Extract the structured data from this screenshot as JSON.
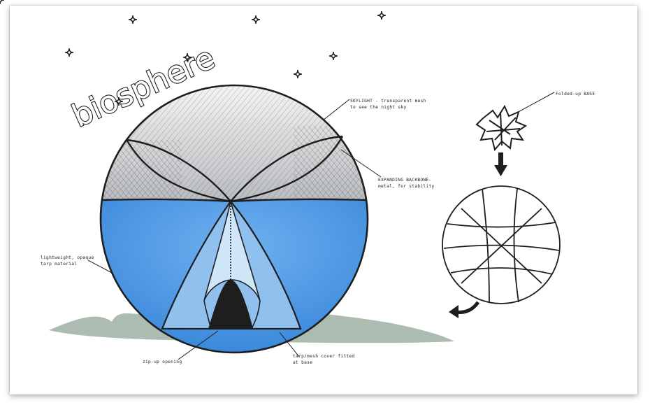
{
  "title": "biosphere",
  "labels": {
    "skylight": [
      "SKYLIGHT - transparent mesh",
      "to see the night sky"
    ],
    "backbone": [
      "EXPANDING BACKBONE-",
      "metal, for stability"
    ],
    "folded_base": [
      "Folded-up BASE"
    ],
    "tarp": [
      "lightweight, opaque",
      "tarp material"
    ],
    "zip": [
      "zip-up opening"
    ],
    "cover": [
      "tarp/mesh cover fitted",
      "at base"
    ]
  },
  "colors": {
    "tarp_blue": "#3d8fe0",
    "tarp_light": "#9cc8f2",
    "mesh_gray": "#cfd2d6",
    "ink": "#1e1e1e",
    "ground": "#8fa595"
  },
  "icons": [
    "sparkle-star-icon",
    "arrow-down-icon",
    "curved-arrow-icon"
  ]
}
